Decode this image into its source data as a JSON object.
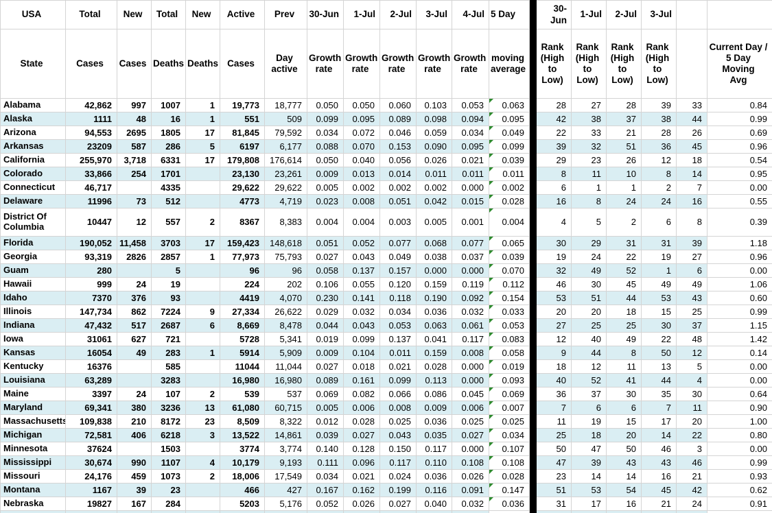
{
  "table": {
    "header_row1": [
      "USA",
      "Total",
      "New",
      "Total",
      "New",
      "Active",
      "Prev",
      "30-Jun",
      "1-Jul",
      "2-Jul",
      "3-Jul",
      "4-Jul",
      "5 Day",
      "",
      "30-Jun",
      "1-Jul",
      "2-Jul",
      "3-Jul",
      "",
      ""
    ],
    "header_row2": [
      "State",
      "Cases",
      "Cases",
      "Deaths",
      "Deaths",
      "Cases",
      "Day\nactive",
      "Growth\nrate",
      "Growth\nrate",
      "Growth\nrate",
      "Growth\nrate",
      "Growth\nrate",
      "moving\naverage",
      "",
      "Rank\n(High\nto Low)",
      "Rank\n(High\nto Low)",
      "Rank\n(High\nto Low)",
      "Rank\n(High\nto Low)",
      "",
      "Current Day /\n5 Day Moving\nAvg"
    ],
    "columns": [
      "state",
      "total_cases",
      "new_cases",
      "total_deaths",
      "new_deaths",
      "active_cases",
      "prev_day_active",
      "growth_rate_30jun",
      "growth_rate_1jul",
      "growth_rate_2jul",
      "growth_rate_3jul",
      "growth_rate_4jul",
      "moving_avg_5day",
      "rank_30jun",
      "rank_1jul",
      "rank_2jul",
      "rank_3jul",
      "rank_current",
      "current_day_over_5day_avg"
    ],
    "rows": [
      {
        "cells": [
          "Alabama",
          "42,862",
          "997",
          "1007",
          "1",
          "19,773",
          "18,777",
          "0.050",
          "0.050",
          "0.060",
          "0.103",
          "0.053",
          "0.063",
          "28",
          "27",
          "28",
          "39",
          "33",
          "0.84"
        ]
      },
      {
        "cells": [
          "Alaska",
          "1111",
          "48",
          "16",
          "1",
          "551",
          "509",
          "0.099",
          "0.095",
          "0.089",
          "0.098",
          "0.094",
          "0.095",
          "42",
          "38",
          "37",
          "38",
          "44",
          "0.99"
        ]
      },
      {
        "cells": [
          "Arizona",
          "94,553",
          "2695",
          "1805",
          "17",
          "81,845",
          "79,592",
          "0.034",
          "0.072",
          "0.046",
          "0.059",
          "0.034",
          "0.049",
          "22",
          "33",
          "21",
          "28",
          "26",
          "0.69"
        ]
      },
      {
        "cells": [
          "Arkansas",
          "23209",
          "587",
          "286",
          "5",
          "6197",
          "6,177",
          "0.088",
          "0.070",
          "0.153",
          "0.090",
          "0.095",
          "0.099",
          "39",
          "32",
          "51",
          "36",
          "45",
          "0.96"
        ]
      },
      {
        "cells": [
          "California",
          "255,970",
          "3,718",
          "6331",
          "17",
          "179,808",
          "176,614",
          "0.050",
          "0.040",
          "0.056",
          "0.026",
          "0.021",
          "0.039",
          "29",
          "23",
          "26",
          "12",
          "18",
          "0.54"
        ]
      },
      {
        "cells": [
          "Colorado",
          "33,866",
          "254",
          "1701",
          "",
          "23,130",
          "23,261",
          "0.009",
          "0.013",
          "0.014",
          "0.011",
          "0.011",
          "0.011",
          "8",
          "11",
          "10",
          "8",
          "14",
          "0.95"
        ]
      },
      {
        "cells": [
          "Connecticut",
          "46,717",
          "",
          "4335",
          "",
          "29,622",
          "29,622",
          "0.005",
          "0.002",
          "0.002",
          "0.002",
          "0.000",
          "0.002",
          "6",
          "1",
          "1",
          "2",
          "7",
          "0.00"
        ]
      },
      {
        "cells": [
          "Delaware",
          "11996",
          "73",
          "512",
          "",
          "4773",
          "4,719",
          "0.023",
          "0.008",
          "0.051",
          "0.042",
          "0.015",
          "0.028",
          "16",
          "8",
          "24",
          "24",
          "16",
          "0.55"
        ]
      },
      {
        "cells": [
          "District Of Columbia",
          "10447",
          "12",
          "557",
          "2",
          "8367",
          "8,383",
          "0.004",
          "0.004",
          "0.003",
          "0.005",
          "0.001",
          "0.004",
          "4",
          "5",
          "2",
          "6",
          "8",
          "0.39"
        ]
      },
      {
        "cells": [
          "Florida",
          "190,052",
          "11,458",
          "3703",
          "17",
          "159,423",
          "148,618",
          "0.051",
          "0.052",
          "0.077",
          "0.068",
          "0.077",
          "0.065",
          "30",
          "29",
          "31",
          "31",
          "39",
          "1.18"
        ]
      },
      {
        "cells": [
          "Georgia",
          "93,319",
          "2826",
          "2857",
          "1",
          "77,973",
          "75,793",
          "0.027",
          "0.043",
          "0.049",
          "0.038",
          "0.037",
          "0.039",
          "19",
          "24",
          "22",
          "19",
          "27",
          "0.96"
        ]
      },
      {
        "cells": [
          "Guam",
          "280",
          "",
          "5",
          "",
          "96",
          "96",
          "0.058",
          "0.137",
          "0.157",
          "0.000",
          "0.000",
          "0.070",
          "32",
          "49",
          "52",
          "1",
          "6",
          "0.00"
        ]
      },
      {
        "cells": [
          "Hawaii",
          "999",
          "24",
          "19",
          "",
          "224",
          "202",
          "0.106",
          "0.055",
          "0.120",
          "0.159",
          "0.119",
          "0.112",
          "46",
          "30",
          "45",
          "49",
          "49",
          "1.06"
        ]
      },
      {
        "cells": [
          "Idaho",
          "7370",
          "376",
          "93",
          "",
          "4419",
          "4,070",
          "0.230",
          "0.141",
          "0.118",
          "0.190",
          "0.092",
          "0.154",
          "53",
          "51",
          "44",
          "53",
          "43",
          "0.60"
        ]
      },
      {
        "cells": [
          "Illinois",
          "147,734",
          "862",
          "7224",
          "9",
          "27,334",
          "26,622",
          "0.029",
          "0.032",
          "0.034",
          "0.036",
          "0.032",
          "0.033",
          "20",
          "20",
          "18",
          "15",
          "25",
          "0.99"
        ]
      },
      {
        "cells": [
          "Indiana",
          "47,432",
          "517",
          "2687",
          "6",
          "8,669",
          "8,478",
          "0.044",
          "0.043",
          "0.053",
          "0.063",
          "0.061",
          "0.053",
          "27",
          "25",
          "25",
          "30",
          "37",
          "1.15"
        ]
      },
      {
        "cells": [
          "Iowa",
          "31061",
          "627",
          "721",
          "",
          "5728",
          "5,341",
          "0.019",
          "0.099",
          "0.137",
          "0.041",
          "0.117",
          "0.083",
          "12",
          "40",
          "49",
          "22",
          "48",
          "1.42"
        ]
      },
      {
        "cells": [
          "Kansas",
          "16054",
          "49",
          "283",
          "1",
          "5914",
          "5,909",
          "0.009",
          "0.104",
          "0.011",
          "0.159",
          "0.008",
          "0.058",
          "9",
          "44",
          "8",
          "50",
          "12",
          "0.14"
        ]
      },
      {
        "cells": [
          "Kentucky",
          "16376",
          "",
          "585",
          "",
          "11044",
          "11,044",
          "0.027",
          "0.018",
          "0.021",
          "0.028",
          "0.000",
          "0.019",
          "18",
          "12",
          "11",
          "13",
          "5",
          "0.00"
        ]
      },
      {
        "cells": [
          "Louisiana",
          "63,289",
          "",
          "3283",
          "",
          "16,980",
          "16,980",
          "0.089",
          "0.161",
          "0.099",
          "0.113",
          "0.000",
          "0.093",
          "40",
          "52",
          "41",
          "44",
          "4",
          "0.00"
        ]
      },
      {
        "cells": [
          "Maine",
          "3397",
          "24",
          "107",
          "2",
          "539",
          "537",
          "0.069",
          "0.082",
          "0.066",
          "0.086",
          "0.045",
          "0.069",
          "36",
          "37",
          "30",
          "35",
          "30",
          "0.64"
        ]
      },
      {
        "cells": [
          "Maryland",
          "69,341",
          "380",
          "3236",
          "13",
          "61,080",
          "60,715",
          "0.005",
          "0.006",
          "0.008",
          "0.009",
          "0.006",
          "0.007",
          "7",
          "6",
          "6",
          "7",
          "11",
          "0.90"
        ]
      },
      {
        "cells": [
          "Massachusetts",
          "109,838",
          "210",
          "8172",
          "23",
          "8,509",
          "8,322",
          "0.012",
          "0.028",
          "0.025",
          "0.036",
          "0.025",
          "0.025",
          "11",
          "19",
          "15",
          "17",
          "20",
          "1.00"
        ]
      },
      {
        "cells": [
          "Michigan",
          "72,581",
          "406",
          "6218",
          "3",
          "13,522",
          "14,861",
          "0.039",
          "0.027",
          "0.043",
          "0.035",
          "0.027",
          "0.034",
          "25",
          "18",
          "20",
          "14",
          "22",
          "0.80"
        ]
      },
      {
        "cells": [
          "Minnesota",
          "37624",
          "",
          "1503",
          "",
          "3774",
          "3,774",
          "0.140",
          "0.128",
          "0.150",
          "0.117",
          "0.000",
          "0.107",
          "50",
          "47",
          "50",
          "46",
          "3",
          "0.00"
        ]
      },
      {
        "cells": [
          "Mississippi",
          "30,674",
          "990",
          "1107",
          "4",
          "10,179",
          "9,193",
          "0.111",
          "0.096",
          "0.117",
          "0.110",
          "0.108",
          "0.108",
          "47",
          "39",
          "43",
          "43",
          "46",
          "0.99"
        ]
      },
      {
        "cells": [
          "Missouri",
          "24,176",
          "459",
          "1073",
          "2",
          "18,006",
          "17,549",
          "0.034",
          "0.021",
          "0.024",
          "0.036",
          "0.026",
          "0.028",
          "23",
          "14",
          "14",
          "16",
          "21",
          "0.93"
        ]
      },
      {
        "cells": [
          "Montana",
          "1167",
          "39",
          "23",
          "",
          "466",
          "427",
          "0.167",
          "0.162",
          "0.199",
          "0.116",
          "0.091",
          "0.147",
          "51",
          "53",
          "54",
          "45",
          "42",
          "0.62"
        ]
      },
      {
        "cells": [
          "Nebraska",
          "19827",
          "167",
          "284",
          "",
          "5203",
          "5,176",
          "0.052",
          "0.026",
          "0.027",
          "0.040",
          "0.032",
          "0.036",
          "31",
          "17",
          "16",
          "21",
          "24",
          "0.91"
        ]
      }
    ]
  },
  "colors": {
    "band_stripe": "#DAEEF3",
    "gridline": "#D4D4D4",
    "divider_bar": "#000000",
    "error_indicator": "#2E8B2E",
    "text": "#000000",
    "background": "#FFFFFF"
  }
}
